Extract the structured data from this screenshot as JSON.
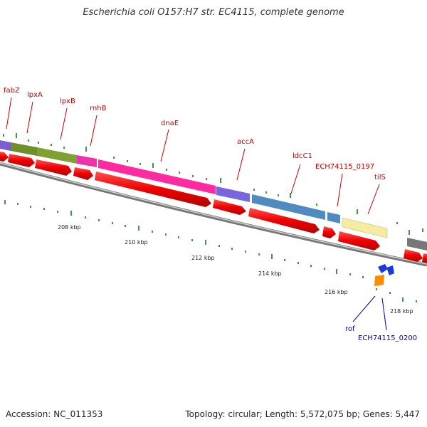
{
  "title": "Escherichia coli O157:H7 str. EC4115, complete genome",
  "accession": "Accession: NC_011353",
  "topology": "Topology: circular; Length: 5,572,075 bp; Genes: 5,447",
  "scale": {
    "labels": [
      "208 kbp",
      "210 kbp",
      "212 kbp",
      "214 kbp",
      "216 kbp",
      "218 kbp"
    ]
  },
  "genes_forward": [
    "fabZ",
    "lpxA",
    "lpxB",
    "rnhB",
    "dnaE",
    "accA",
    "ldcC1",
    "ECH74115_0197",
    "tilS"
  ],
  "genes_reverse": [
    "rof",
    "ECH74115_0200"
  ],
  "colors": {
    "cds": "#ee0000",
    "track": "#888888",
    "tick": "#007700",
    "forward_label": "#cc0000",
    "reverse_label": "#0000aa",
    "fabZ": "#7b5fd0",
    "lpxA": "#6f8f2a",
    "lpxB": "#7fa033",
    "rnhB": "#ee33aa",
    "dnaE": "#ff2aa0",
    "accA": "#7766dd",
    "ldcC1": "#4f8bc0",
    "ECH74115_0197": "#4f8bc0",
    "tilS": "#f4eca0",
    "rof": "#1a3ae0",
    "ECH74115_0200": "#ff8c00"
  }
}
